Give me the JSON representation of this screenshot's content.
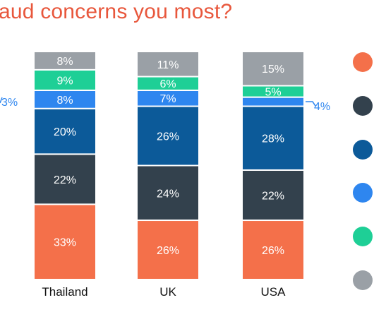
{
  "title": "aud concerns you most?",
  "chart_data": {
    "type": "bar",
    "stacked": true,
    "categories": [
      "Thailand",
      "UK",
      "USA"
    ],
    "series": [
      {
        "color": "#f4704a",
        "values": [
          33,
          26,
          26
        ]
      },
      {
        "color": "#33414d",
        "values": [
          22,
          24,
          22
        ]
      },
      {
        "color": "#0c5a99",
        "values": [
          20,
          26,
          28
        ]
      },
      {
        "color": "#2e86ef",
        "values": [
          8,
          7,
          4
        ]
      },
      {
        "color": "#1ecf96",
        "values": [
          9,
          6,
          5
        ]
      },
      {
        "color": "#9aa0a6",
        "values": [
          8,
          11,
          15
        ]
      }
    ],
    "inside_labels": [
      [
        "33%",
        "26%",
        "26%"
      ],
      [
        "22%",
        "24%",
        "22%"
      ],
      [
        "20%",
        "26%",
        "28%"
      ],
      [
        "8%",
        "7%",
        ""
      ],
      [
        "9%",
        "6%",
        "5%"
      ],
      [
        "8%",
        "11%",
        "15%"
      ]
    ],
    "outside_labels": {
      "left_partial": "3%",
      "usa_small": "4%"
    }
  },
  "legend_colors": [
    "#f4704a",
    "#33414d",
    "#0c5a99",
    "#2e86ef",
    "#1ecf96",
    "#9aa0a6"
  ]
}
